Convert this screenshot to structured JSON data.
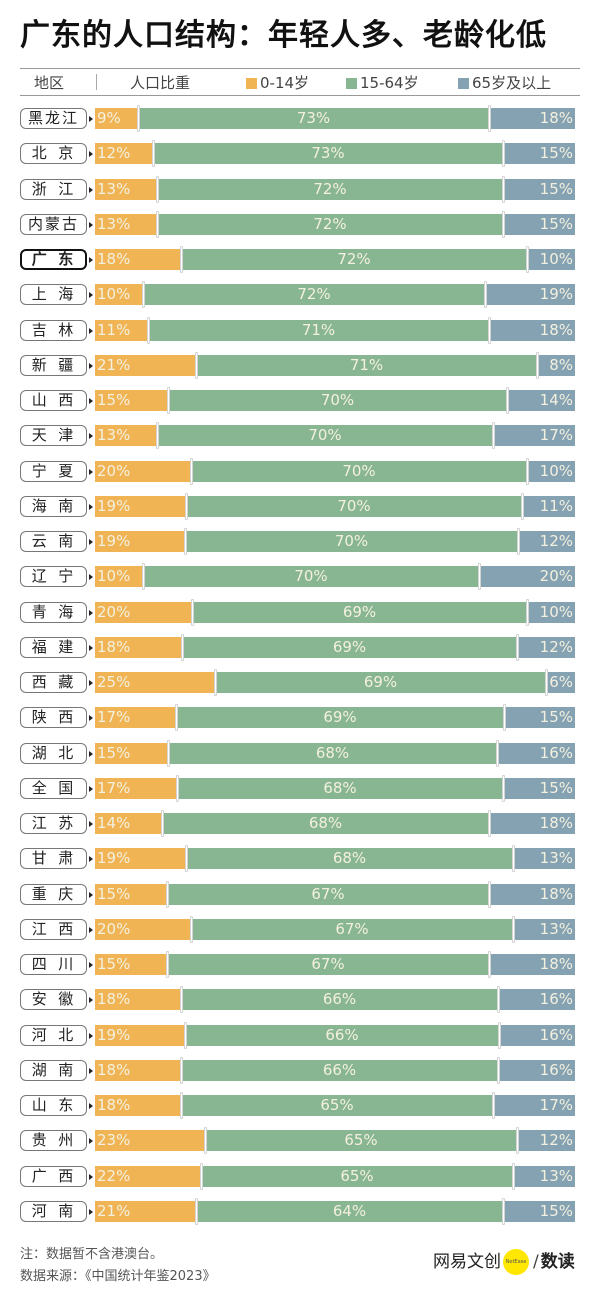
{
  "title": "广东的人口结构：年轻人多、老龄化低",
  "header": {
    "col_region": "地区",
    "col_share": "人口比重",
    "legend": [
      {
        "label": "0-14岁",
        "color": "#f0b455"
      },
      {
        "label": "15-64岁",
        "color": "#89b692"
      },
      {
        "label": "65岁及以上",
        "color": "#85a2b2"
      }
    ]
  },
  "chart_data": {
    "type": "bar",
    "orientation": "horizontal-stacked-100",
    "title": "广东的人口结构：年轻人多、老龄化低",
    "xlabel": "人口比重",
    "ylabel": "地区",
    "highlight": "广东",
    "categories": [
      "黑龙江",
      "北京",
      "浙江",
      "内蒙古",
      "广东",
      "上海",
      "吉林",
      "新疆",
      "山西",
      "天津",
      "宁夏",
      "海南",
      "云南",
      "辽宁",
      "青海",
      "福建",
      "西藏",
      "陕西",
      "湖北",
      "全国",
      "江苏",
      "甘肃",
      "重庆",
      "江西",
      "四川",
      "安徽",
      "河北",
      "湖南",
      "山东",
      "贵州",
      "广西",
      "河南"
    ],
    "series": [
      {
        "name": "0-14岁",
        "color": "#f0b455",
        "values": [
          9,
          12,
          13,
          13,
          18,
          10,
          11,
          21,
          15,
          13,
          20,
          19,
          19,
          10,
          20,
          18,
          25,
          17,
          15,
          17,
          14,
          19,
          15,
          20,
          15,
          18,
          19,
          18,
          18,
          23,
          22,
          21
        ]
      },
      {
        "name": "15-64岁",
        "color": "#89b692",
        "values": [
          73,
          73,
          72,
          72,
          72,
          72,
          71,
          71,
          70,
          70,
          70,
          70,
          70,
          70,
          69,
          69,
          69,
          69,
          68,
          68,
          68,
          68,
          67,
          67,
          67,
          66,
          66,
          66,
          65,
          65,
          65,
          64
        ]
      },
      {
        "name": "65岁及以上",
        "color": "#85a2b2",
        "values": [
          18,
          15,
          15,
          15,
          10,
          19,
          18,
          8,
          14,
          17,
          10,
          11,
          12,
          20,
          10,
          12,
          6,
          15,
          16,
          15,
          18,
          13,
          18,
          13,
          18,
          16,
          16,
          16,
          17,
          12,
          13,
          15
        ]
      }
    ],
    "value_format": "{v}%",
    "legend_position": "top"
  },
  "footer": {
    "note": "注：数据暂不含港澳台。",
    "source": "数据来源：《中国统计年鉴2023》",
    "brand_main": "网易文创",
    "brand_badge": "NetEase",
    "brand_slash": "/",
    "brand_sub": "数读"
  }
}
